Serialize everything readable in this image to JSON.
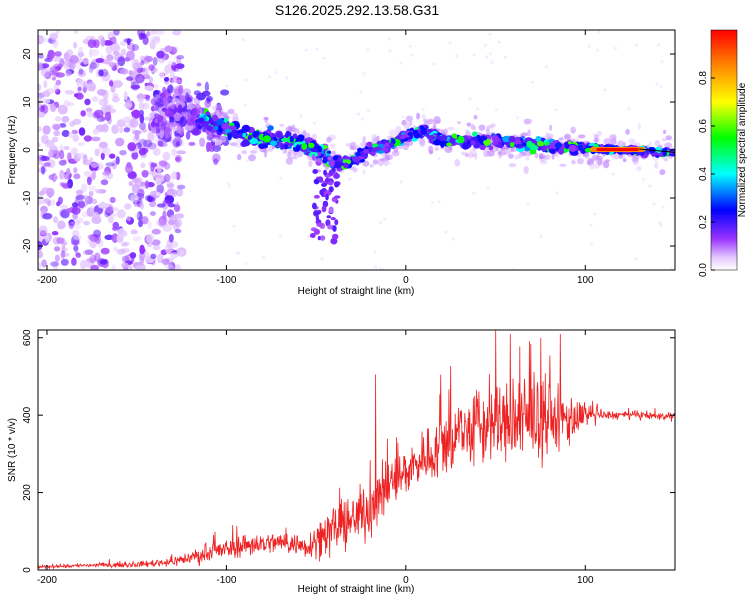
{
  "title": "S126.2025.292.13.58.G31",
  "chart_data": [
    {
      "type": "heatmap",
      "title": "S126.2025.292.13.58.G31",
      "xlabel": "Height of straight line (km)",
      "ylabel": "Frequency (Hz)",
      "xlim": [
        -205,
        150
      ],
      "ylim": [
        -25,
        25
      ],
      "xticks": [
        "-200",
        "-100",
        "0",
        "100"
      ],
      "xtick_values": [
        -200,
        -100,
        0,
        100
      ],
      "yticks": [
        "-20",
        "-10",
        "0",
        "10",
        "20"
      ],
      "ytick_values": [
        -20,
        -10,
        0,
        10,
        20
      ],
      "colorbar": {
        "label": "Normalized spectral amplitude",
        "range": [
          0,
          1
        ],
        "ticks": [
          "0.0",
          "0.2",
          "0.4",
          "0.6",
          "0.8"
        ],
        "tick_values": [
          0.0,
          0.2,
          0.4,
          0.6,
          0.8
        ]
      },
      "ridge_centerline": {
        "x": [
          -130,
          -110,
          -90,
          -70,
          -55,
          -45,
          -38,
          -30,
          -20,
          -10,
          0,
          10,
          20,
          40,
          60,
          80,
          100,
          120,
          150
        ],
        "y": [
          8,
          6,
          3,
          2,
          1,
          -1,
          -3,
          -2,
          0,
          1,
          3,
          4,
          2,
          2,
          1.5,
          1,
          0.5,
          0,
          -0.5
        ]
      }
    },
    {
      "type": "line",
      "xlabel": "Height of straight line (km)",
      "ylabel": "SNR (10 * v/v)",
      "xlim": [
        -205,
        150
      ],
      "ylim": [
        0,
        620
      ],
      "xticks": [
        "-200",
        "-100",
        "0",
        "100"
      ],
      "xtick_values": [
        -200,
        -100,
        0,
        100
      ],
      "yticks": [
        "0",
        "200",
        "400",
        "600"
      ],
      "ytick_values": [
        0,
        200,
        400,
        600
      ],
      "series": [
        {
          "name": "SNR",
          "color": "#ee2222",
          "x": [
            -205,
            -180,
            -150,
            -130,
            -110,
            -90,
            -70,
            -55,
            -45,
            -38,
            -30,
            -20,
            -15,
            -10,
            0,
            10,
            20,
            30,
            50,
            70,
            90,
            100,
            110,
            130,
            150
          ],
          "mean": [
            8,
            12,
            14,
            22,
            42,
            65,
            72,
            62,
            95,
            110,
            125,
            165,
            185,
            215,
            255,
            290,
            320,
            355,
            375,
            385,
            390,
            395,
            400,
            400,
            395
          ],
          "noise": [
            6,
            8,
            10,
            18,
            35,
            45,
            40,
            45,
            90,
            95,
            90,
            120,
            110,
            100,
            90,
            100,
            130,
            150,
            160,
            150,
            120,
            40,
            18,
            15,
            14
          ],
          "peaks": [
            {
              "x": -17,
              "y": 505
            },
            {
              "x": 50,
              "y": 620
            },
            {
              "x": 58,
              "y": 610
            },
            {
              "x": 75,
              "y": 600
            },
            {
              "x": 86,
              "y": 610
            }
          ]
        }
      ]
    }
  ]
}
